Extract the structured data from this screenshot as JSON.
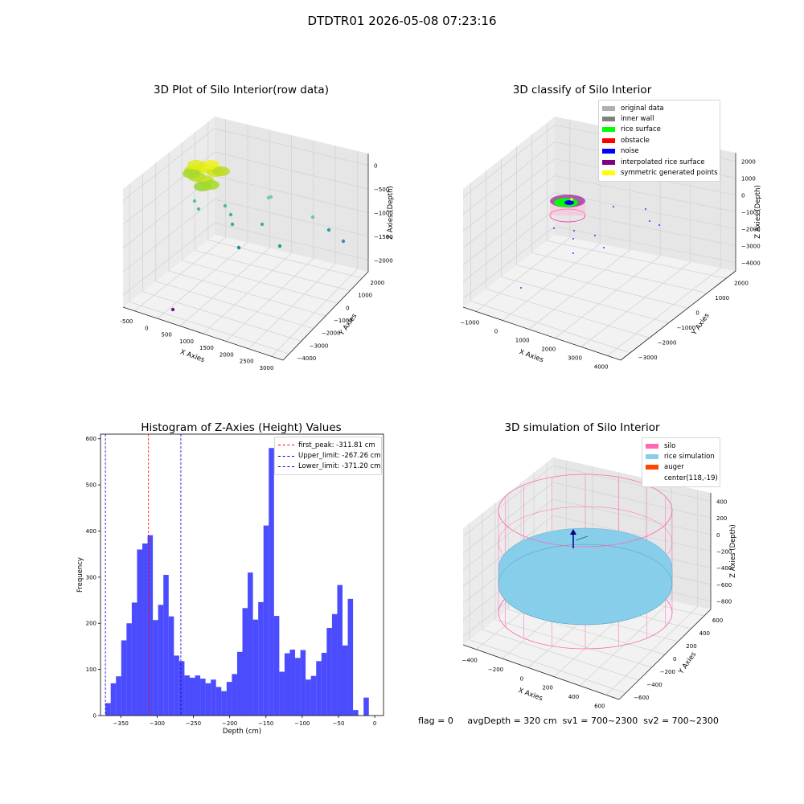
{
  "figure": {
    "suptitle": "DTDTR01 2026-05-08 07:23:16"
  },
  "panels": {
    "raw": {
      "title": "3D Plot of Silo Interior(row data)",
      "xlabel": "X Axies",
      "ylabel": "Y Axies",
      "zlabel": "Z Axies (Depth)",
      "xticks": [
        "-500",
        "0",
        "500",
        "1000",
        "1500",
        "2000",
        "2500",
        "3000"
      ],
      "yticks": [
        "2000",
        "1000",
        "0",
        "−1000",
        "−2000",
        "−3000",
        "−4000"
      ],
      "zticks": [
        "0",
        "−500",
        "−1000",
        "−1500",
        "−2000"
      ]
    },
    "classify": {
      "title": "3D classify of Silo Interior",
      "xlabel": "X Axies",
      "ylabel": "Y Axies",
      "zlabel": "Z Axies (Depth)",
      "xticks": [
        "−1000",
        "0",
        "1000",
        "2000",
        "3000",
        "4000"
      ],
      "yticks": [
        "2000",
        "1000",
        "0",
        "−1000",
        "−2000",
        "−3000"
      ],
      "zticks": [
        "2000",
        "1000",
        "0",
        "−1000",
        "−2000",
        "−3000",
        "−4000"
      ],
      "legend": [
        {
          "label": "original data",
          "color": "#b0b0b0"
        },
        {
          "label": "inner wall",
          "color": "#808080"
        },
        {
          "label": "rice surface",
          "color": "#00ff00"
        },
        {
          "label": "obstacle",
          "color": "#ff0000"
        },
        {
          "label": "noise",
          "color": "#0000ff"
        },
        {
          "label": "interpolated rice surface",
          "color": "#800080"
        },
        {
          "label": "symmetric generated points",
          "color": "#ffff00"
        }
      ]
    },
    "simulation": {
      "title": "3D simulation of Silo Interior",
      "xlabel": "X Axies",
      "ylabel": "Y Axies",
      "zlabel": "Z Axies (Depth)",
      "xticks": [
        "−400",
        "−200",
        "0",
        "200",
        "400",
        "600"
      ],
      "yticks": [
        "600",
        "400",
        "200",
        "0",
        "−200",
        "−400",
        "−600"
      ],
      "zticks": [
        "400",
        "200",
        "0",
        "−200",
        "−400",
        "−600",
        "−800"
      ],
      "legend": [
        {
          "label": "silo",
          "color": "#ff69b4"
        },
        {
          "label": "rice simulation",
          "color": "#87ceeb"
        },
        {
          "label": "auger",
          "color": "#ff4500"
        },
        {
          "label": "center(118,-19)",
          "color": ""
        }
      ]
    }
  },
  "footer": {
    "flag": "flag = 0",
    "avg": "avgDepth = 320 cm",
    "sv1": "sv1 = 700~2300",
    "sv2": "sv2 = 700~2300"
  },
  "chart_data": [
    {
      "type": "bar",
      "title": "Histogram of Z-Axies (Height) Values",
      "xlabel": "Depth (cm)",
      "ylabel": "Frequency",
      "xlim": [
        -378,
        12
      ],
      "ylim": [
        0,
        610
      ],
      "xticks": [
        -350,
        -300,
        -250,
        -200,
        -150,
        -100,
        -50,
        0
      ],
      "yticks": [
        0,
        100,
        200,
        300,
        400,
        500,
        600
      ],
      "bin_start": -371.2,
      "bin_width": 7.26,
      "color": "#0000ff",
      "values": [
        27,
        70,
        85,
        163,
        200,
        245,
        360,
        373,
        391,
        207,
        240,
        305,
        215,
        130,
        118,
        87,
        82,
        87,
        80,
        70,
        78,
        62,
        53,
        73,
        90,
        138,
        233,
        310,
        208,
        246,
        412,
        580,
        216,
        95,
        135,
        143,
        125,
        142,
        78,
        86,
        118,
        136,
        190,
        220,
        283,
        152,
        253,
        12,
        0,
        39
      ],
      "vlines": [
        {
          "label": "first_peak: -311.81 cm",
          "value": -311.81,
          "color": "#ff0000"
        },
        {
          "label": "Upper_limit: -267.26 cm",
          "value": -267.26,
          "color": "#0000cc"
        },
        {
          "label": "Lower_limit: -371.20 cm",
          "value": -371.2,
          "color": "#0000cc"
        }
      ],
      "legend_position": "top-right",
      "grid": false
    }
  ]
}
